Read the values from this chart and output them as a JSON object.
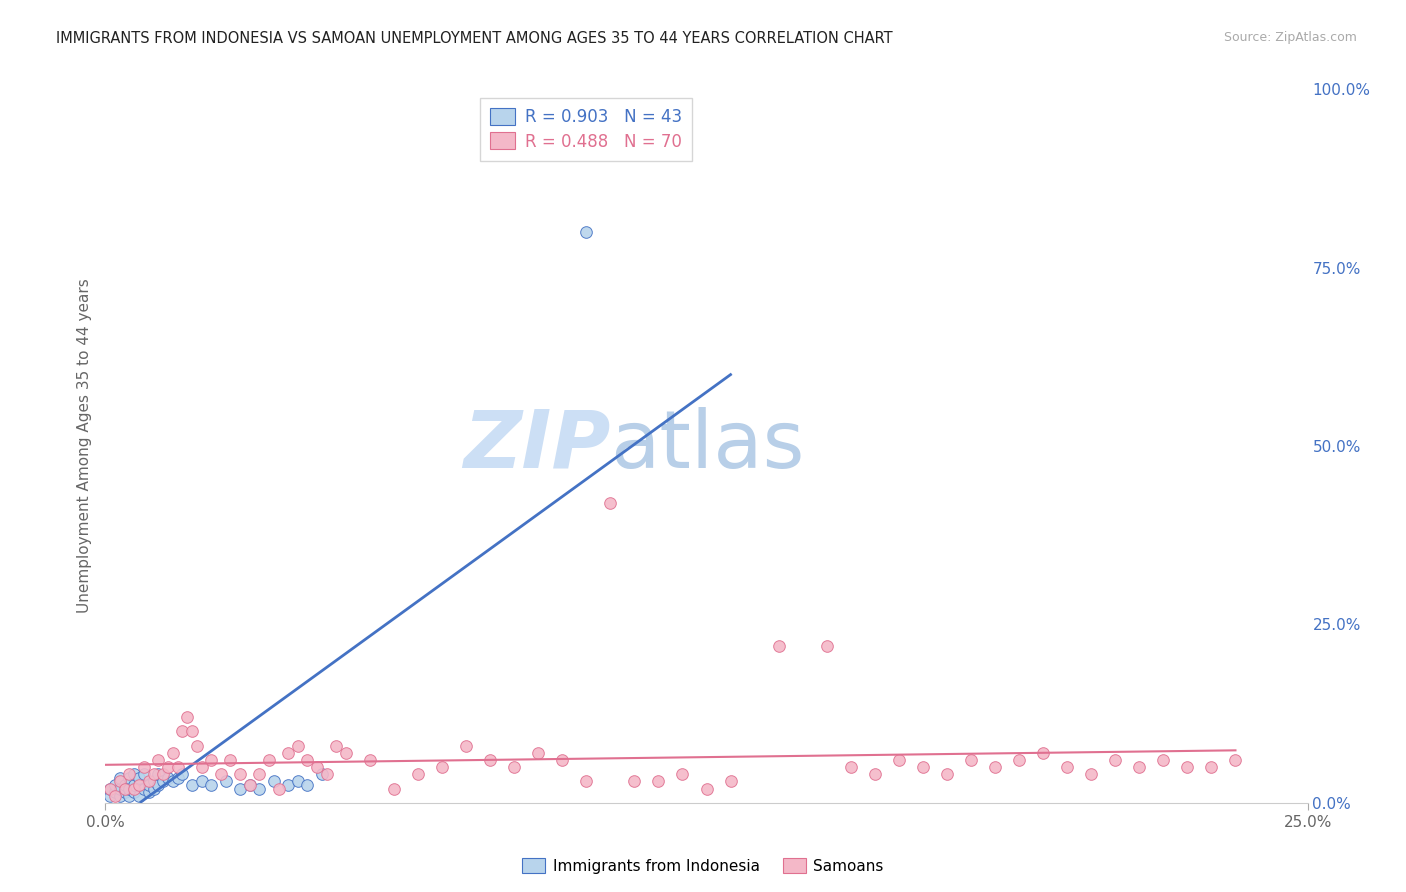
{
  "title": "IMMIGRANTS FROM INDONESIA VS SAMOAN UNEMPLOYMENT AMONG AGES 35 TO 44 YEARS CORRELATION CHART",
  "source": "Source: ZipAtlas.com",
  "ylabel": "Unemployment Among Ages 35 to 44 years",
  "xlim": [
    0,
    0.25
  ],
  "ylim": [
    0,
    1.0
  ],
  "series1_name": "Immigrants from Indonesia",
  "series1_R": 0.903,
  "series1_N": 43,
  "series1_color": "#b8d4ec",
  "series1_line_color": "#4472c4",
  "series2_name": "Samoans",
  "series2_R": 0.488,
  "series2_N": 70,
  "series2_color": "#f4b8c8",
  "series2_line_color": "#e07090",
  "background_color": "#ffffff",
  "grid_color": "#cccccc",
  "title_color": "#222222",
  "right_axis_color": "#4472c4",
  "watermark_zip_color": "#ccdff5",
  "watermark_atlas_color": "#b8cfe8",
  "series1_x": [
    0.001,
    0.001,
    0.002,
    0.002,
    0.003,
    0.003,
    0.003,
    0.004,
    0.004,
    0.005,
    0.005,
    0.005,
    0.006,
    0.006,
    0.006,
    0.007,
    0.007,
    0.008,
    0.008,
    0.009,
    0.009,
    0.01,
    0.01,
    0.011,
    0.011,
    0.012,
    0.013,
    0.014,
    0.015,
    0.016,
    0.018,
    0.02,
    0.022,
    0.025,
    0.028,
    0.03,
    0.032,
    0.035,
    0.038,
    0.04,
    0.042,
    0.045,
    0.1
  ],
  "series1_y": [
    0.01,
    0.02,
    0.015,
    0.025,
    0.01,
    0.02,
    0.035,
    0.015,
    0.025,
    0.01,
    0.02,
    0.035,
    0.015,
    0.025,
    0.04,
    0.01,
    0.035,
    0.02,
    0.04,
    0.015,
    0.025,
    0.02,
    0.03,
    0.025,
    0.04,
    0.03,
    0.035,
    0.03,
    0.035,
    0.04,
    0.025,
    0.03,
    0.025,
    0.03,
    0.02,
    0.025,
    0.02,
    0.03,
    0.025,
    0.03,
    0.025,
    0.04,
    0.8
  ],
  "series2_x": [
    0.001,
    0.002,
    0.003,
    0.004,
    0.005,
    0.006,
    0.007,
    0.008,
    0.009,
    0.01,
    0.011,
    0.012,
    0.013,
    0.014,
    0.015,
    0.016,
    0.017,
    0.018,
    0.019,
    0.02,
    0.022,
    0.024,
    0.026,
    0.028,
    0.03,
    0.032,
    0.034,
    0.036,
    0.038,
    0.04,
    0.042,
    0.044,
    0.046,
    0.048,
    0.05,
    0.055,
    0.06,
    0.065,
    0.07,
    0.075,
    0.08,
    0.085,
    0.09,
    0.095,
    0.1,
    0.105,
    0.11,
    0.115,
    0.12,
    0.125,
    0.13,
    0.14,
    0.15,
    0.155,
    0.16,
    0.165,
    0.17,
    0.175,
    0.18,
    0.185,
    0.19,
    0.195,
    0.2,
    0.205,
    0.21,
    0.215,
    0.22,
    0.225,
    0.23,
    0.235
  ],
  "series2_y": [
    0.02,
    0.01,
    0.03,
    0.02,
    0.04,
    0.02,
    0.025,
    0.05,
    0.03,
    0.04,
    0.06,
    0.04,
    0.05,
    0.07,
    0.05,
    0.1,
    0.12,
    0.1,
    0.08,
    0.05,
    0.06,
    0.04,
    0.06,
    0.04,
    0.025,
    0.04,
    0.06,
    0.02,
    0.07,
    0.08,
    0.06,
    0.05,
    0.04,
    0.08,
    0.07,
    0.06,
    0.02,
    0.04,
    0.05,
    0.08,
    0.06,
    0.05,
    0.07,
    0.06,
    0.03,
    0.42,
    0.03,
    0.03,
    0.04,
    0.02,
    0.03,
    0.22,
    0.22,
    0.05,
    0.04,
    0.06,
    0.05,
    0.04,
    0.06,
    0.05,
    0.06,
    0.07,
    0.05,
    0.04,
    0.06,
    0.05,
    0.06,
    0.05,
    0.05,
    0.06
  ]
}
